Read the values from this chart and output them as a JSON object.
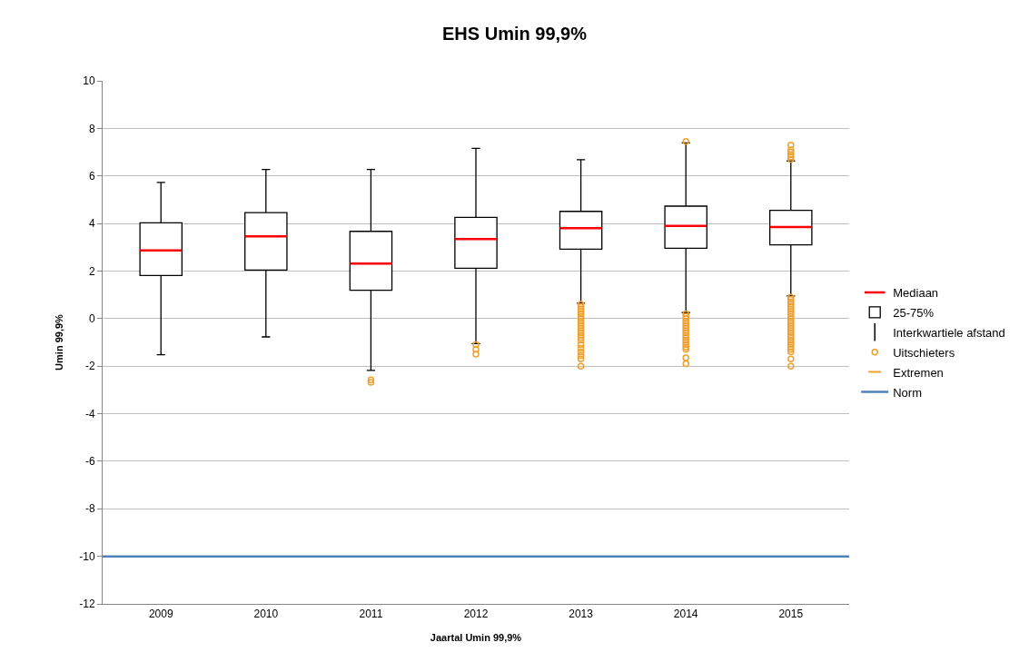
{
  "chart_data": {
    "type": "box",
    "title": "EHS Umin 99,9%",
    "xlabel": "Jaartal Umin 99,9%",
    "ylabel": "Umin 99,9%",
    "categories": [
      "2009",
      "2010",
      "2011",
      "2012",
      "2013",
      "2014",
      "2015"
    ],
    "ylim": [
      -12,
      10
    ],
    "yticks": [
      -12,
      -10,
      -8,
      -6,
      -4,
      -2,
      0,
      2,
      4,
      6,
      8,
      10
    ],
    "grid": "y",
    "legend": "right",
    "series": [
      {
        "name": "Mediaan",
        "type": "scatter",
        "color": "#ff0000",
        "values": [
          null,
          null,
          null,
          null,
          null,
          null,
          null
        ]
      },
      {
        "name": "25-75%",
        "color": "#000000",
        "boxes": [
          {
            "low": -1.52,
            "q1": 1.81,
            "median": 2.87,
            "q3": 4.03,
            "high": 5.73
          },
          {
            "low": -0.77,
            "q1": 2.04,
            "median": 3.46,
            "q3": 4.46,
            "high": 6.27
          },
          {
            "low": -2.18,
            "q1": 1.19,
            "median": 2.31,
            "q3": 3.67,
            "high": 6.27,
            "outliers": [
              -2.58,
              -2.68
            ]
          },
          {
            "low": -1.05,
            "q1": 2.12,
            "median": 3.34,
            "q3": 4.26,
            "high": 7.16,
            "outliers": [
              -1.1,
              -1.3,
              -1.5
            ]
          },
          {
            "low": 0.65,
            "q1": 2.92,
            "median": 3.8,
            "q3": 4.51,
            "high": 6.68,
            "outliers": [
              0.6,
              0.5,
              0.4,
              0.3,
              0.2,
              0.1,
              0.0,
              -0.1,
              -0.2,
              -0.3,
              -0.4,
              -0.5,
              -0.6,
              -0.7,
              -0.8,
              -0.9,
              -1.1,
              -1.25,
              -1.4,
              -1.55,
              -1.7,
              -2.0
            ]
          },
          {
            "low": 0.25,
            "q1": 2.96,
            "median": 3.9,
            "q3": 4.73,
            "high": 7.39,
            "outliers": [
              7.45,
              0.2,
              0.1,
              0.0,
              -0.1,
              -0.2,
              -0.3,
              -0.4,
              -0.5,
              -0.6,
              -0.7,
              -0.8,
              -0.9,
              -1.0,
              -1.1,
              -1.2,
              -1.3,
              -1.65,
              -1.9
            ]
          },
          {
            "low": 0.95,
            "q1": 3.1,
            "median": 3.85,
            "q3": 4.55,
            "high": 6.63,
            "outliers": [
              6.7,
              6.8,
              6.9,
              7.0,
              7.1,
              7.3,
              0.9,
              0.8,
              0.7,
              0.6,
              0.5,
              0.4,
              0.3,
              0.2,
              0.1,
              0.0,
              -0.1,
              -0.2,
              -0.3,
              -0.4,
              -0.5,
              -0.6,
              -0.7,
              -0.8,
              -0.9,
              -1.0,
              -1.1,
              -1.2,
              -1.3,
              -1.4,
              -1.7,
              -2.0
            ]
          }
        ]
      },
      {
        "name": "Interkwartiele afstand",
        "type": "scatter",
        "color": "#000000",
        "values": [
          null,
          null,
          null,
          null,
          null,
          null,
          null
        ]
      },
      {
        "name": "Uitschieters",
        "type": "scatter",
        "color": "#f0a030",
        "values": [
          null,
          null,
          null,
          null,
          null,
          null,
          null
        ]
      },
      {
        "name": "Extremen",
        "type": "scatter",
        "color": "#f0a030",
        "values": [
          null,
          null,
          null,
          null,
          null,
          null,
          null
        ]
      }
    ],
    "ref_lines": [
      {
        "axis": "y",
        "value": -10,
        "label": "Norm",
        "color": "#4f81bd"
      }
    ]
  }
}
